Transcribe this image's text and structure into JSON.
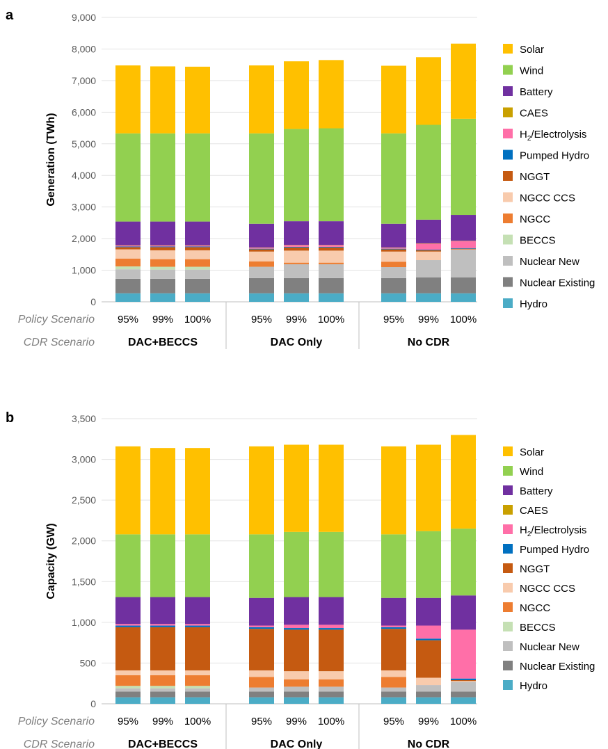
{
  "scenario_row_labels": {
    "policy": "Policy Scenario",
    "cdr": "CDR Scenario"
  },
  "legend": [
    {
      "key": "solar",
      "label": "Solar",
      "color": "#FFC000"
    },
    {
      "key": "wind",
      "label": "Wind",
      "color": "#92D050"
    },
    {
      "key": "battery",
      "label": "Battery",
      "color": "#7030A0"
    },
    {
      "key": "caes",
      "label": "CAES",
      "color": "#C9A000"
    },
    {
      "key": "h2",
      "label": "H2/Electrolysis",
      "color": "#FF6FA8"
    },
    {
      "key": "pumped_hydro",
      "label": "Pumped Hydro",
      "color": "#0070C0"
    },
    {
      "key": "nggt",
      "label": "NGGT",
      "color": "#C55A11"
    },
    {
      "key": "ngcc_ccs",
      "label": "NGCC CCS",
      "color": "#F8CBAD"
    },
    {
      "key": "ngcc",
      "label": "NGCC",
      "color": "#ED7D31"
    },
    {
      "key": "beccs",
      "label": "BECCS",
      "color": "#C5E0B4"
    },
    {
      "key": "nuclear_new",
      "label": "Nuclear New",
      "color": "#BFBFBF"
    },
    {
      "key": "nuclear_existing",
      "label": "Nuclear Existing",
      "color": "#808080"
    },
    {
      "key": "hydro",
      "label": "Hydro",
      "color": "#4BACC6"
    }
  ],
  "chart_data": [
    {
      "panel": "a",
      "type": "bar",
      "stacked": true,
      "ylabel": "Generation (TWh)",
      "ylim": [
        0,
        9000
      ],
      "yticks": [
        0,
        1000,
        2000,
        3000,
        4000,
        5000,
        6000,
        7000,
        8000,
        9000
      ],
      "ytick_labels": [
        "0",
        "1,000",
        "2,000",
        "3,000",
        "4,000",
        "5,000",
        "6,000",
        "7,000",
        "8,000",
        "9,000"
      ],
      "groups": [
        "DAC+BECCS",
        "DAC Only",
        "No CDR"
      ],
      "categories": [
        "95%",
        "99%",
        "100%",
        "95%",
        "99%",
        "100%",
        "95%",
        "99%",
        "100%"
      ],
      "series": [
        {
          "name": "Hydro",
          "values": [
            270,
            270,
            270,
            270,
            270,
            270,
            270,
            270,
            270
          ]
        },
        {
          "name": "Nuclear Existing",
          "values": [
            460,
            460,
            460,
            480,
            480,
            480,
            480,
            500,
            500
          ]
        },
        {
          "name": "Nuclear New",
          "values": [
            300,
            290,
            290,
            360,
            440,
            440,
            350,
            550,
            880
          ]
        },
        {
          "name": "BECCS",
          "values": [
            90,
            90,
            90,
            0,
            0,
            0,
            0,
            0,
            0
          ]
        },
        {
          "name": "NGCC",
          "values": [
            250,
            240,
            240,
            170,
            50,
            50,
            170,
            0,
            0
          ]
        },
        {
          "name": "NGCC CCS",
          "values": [
            290,
            280,
            280,
            310,
            380,
            380,
            320,
            270,
            10
          ]
        },
        {
          "name": "NGGT",
          "values": [
            70,
            100,
            100,
            70,
            100,
            100,
            70,
            40,
            20
          ]
        },
        {
          "name": "Pumped Hydro",
          "values": [
            20,
            20,
            20,
            20,
            20,
            20,
            20,
            20,
            20
          ]
        },
        {
          "name": "H2/Electrolysis",
          "values": [
            30,
            30,
            30,
            30,
            50,
            50,
            30,
            190,
            220
          ]
        },
        {
          "name": "CAES",
          "values": [
            10,
            10,
            10,
            10,
            10,
            10,
            10,
            10,
            10
          ]
        },
        {
          "name": "Battery",
          "values": [
            750,
            750,
            750,
            750,
            750,
            750,
            750,
            750,
            820
          ]
        },
        {
          "name": "Wind",
          "values": [
            2790,
            2790,
            2790,
            2860,
            2920,
            2940,
            2860,
            3000,
            3040
          ]
        },
        {
          "name": "Solar",
          "values": [
            2150,
            2120,
            2110,
            2150,
            2140,
            2160,
            2140,
            2140,
            2380
          ]
        }
      ]
    },
    {
      "panel": "b",
      "type": "bar",
      "stacked": true,
      "ylabel": "Capacity (GW)",
      "ylim": [
        0,
        3500
      ],
      "yticks": [
        0,
        500,
        1000,
        1500,
        2000,
        2500,
        3000,
        3500
      ],
      "ytick_labels": [
        "0",
        "500",
        "1,000",
        "1,500",
        "2,000",
        "2,500",
        "3,000",
        "3,500"
      ],
      "groups": [
        "DAC+BECCS",
        "DAC Only",
        "No CDR"
      ],
      "categories": [
        "95%",
        "99%",
        "100%",
        "95%",
        "99%",
        "100%",
        "95%",
        "99%",
        "100%"
      ],
      "series": [
        {
          "name": "Hydro",
          "values": [
            80,
            80,
            80,
            80,
            80,
            80,
            80,
            80,
            80
          ]
        },
        {
          "name": "Nuclear Existing",
          "values": [
            70,
            70,
            70,
            70,
            70,
            70,
            70,
            70,
            70
          ]
        },
        {
          "name": "Nuclear New",
          "values": [
            40,
            40,
            40,
            50,
            60,
            60,
            50,
            80,
            120
          ]
        },
        {
          "name": "BECCS",
          "values": [
            30,
            30,
            30,
            0,
            0,
            0,
            0,
            0,
            0
          ]
        },
        {
          "name": "NGCC",
          "values": [
            130,
            130,
            130,
            130,
            90,
            90,
            130,
            0,
            0
          ]
        },
        {
          "name": "NGCC CCS",
          "values": [
            60,
            60,
            60,
            80,
            100,
            100,
            80,
            90,
            10
          ]
        },
        {
          "name": "NGGT",
          "values": [
            530,
            530,
            530,
            510,
            510,
            510,
            510,
            460,
            10
          ]
        },
        {
          "name": "Pumped Hydro",
          "values": [
            20,
            20,
            20,
            20,
            20,
            20,
            20,
            20,
            20
          ]
        },
        {
          "name": "H2/Electrolysis",
          "values": [
            20,
            20,
            20,
            20,
            40,
            40,
            20,
            160,
            600
          ]
        },
        {
          "name": "CAES",
          "values": [
            0,
            0,
            0,
            0,
            0,
            0,
            0,
            0,
            0
          ]
        },
        {
          "name": "Battery",
          "values": [
            330,
            330,
            330,
            340,
            340,
            340,
            340,
            340,
            420
          ]
        },
        {
          "name": "Wind",
          "values": [
            770,
            770,
            770,
            780,
            800,
            800,
            780,
            820,
            820
          ]
        },
        {
          "name": "Solar",
          "values": [
            1080,
            1060,
            1060,
            1080,
            1070,
            1070,
            1080,
            1060,
            1150
          ]
        }
      ]
    }
  ]
}
